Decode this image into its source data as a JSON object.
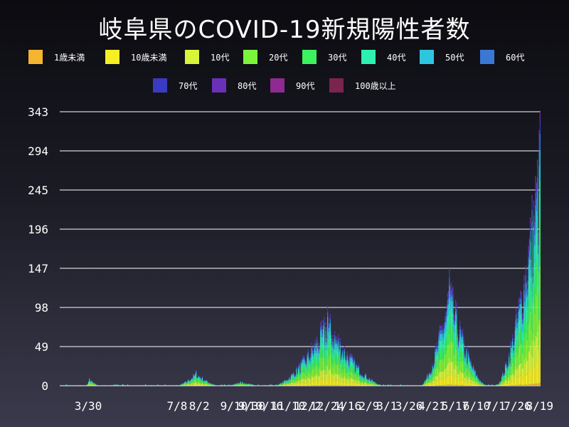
{
  "chart_data": {
    "type": "bar",
    "stacked": true,
    "title": "岐阜県のCOVID-19新規陽性者数",
    "ylim": [
      0,
      343
    ],
    "yticks": [
      0,
      49,
      98,
      147,
      196,
      245,
      294,
      343
    ],
    "xticks": [
      {
        "day": 32,
        "label": "3/30"
      },
      {
        "day": 132,
        "label": "7/8"
      },
      {
        "day": 157,
        "label": "8/2"
      },
      {
        "day": 196,
        "label": "9/10"
      },
      {
        "day": 216,
        "label": "9/30"
      },
      {
        "day": 232,
        "label": "10/16"
      },
      {
        "day": 257,
        "label": "11/10"
      },
      {
        "day": 279,
        "label": "12/2"
      },
      {
        "day": 301,
        "label": "12/24"
      },
      {
        "day": 324,
        "label": "1/16"
      },
      {
        "day": 348,
        "label": "2/9"
      },
      {
        "day": 368,
        "label": "3/1"
      },
      {
        "day": 393,
        "label": "3/26"
      },
      {
        "day": 419,
        "label": "4/21"
      },
      {
        "day": 445,
        "label": "5/17"
      },
      {
        "day": 469,
        "label": "6/10"
      },
      {
        "day": 490,
        "label": "7/1"
      },
      {
        "day": 515,
        "label": "7/26"
      },
      {
        "day": 540,
        "label": "8/19"
      }
    ],
    "series": [
      {
        "name": "1歳未満",
        "color": "#f5b52e"
      },
      {
        "name": "10歳未満",
        "color": "#f7ef23"
      },
      {
        "name": "10代",
        "color": "#d8f53a"
      },
      {
        "name": "20代",
        "color": "#7df43c"
      },
      {
        "name": "30代",
        "color": "#3cf25f"
      },
      {
        "name": "40代",
        "color": "#2ef0b0"
      },
      {
        "name": "50代",
        "color": "#2ec6df"
      },
      {
        "name": "60代",
        "color": "#3a78d4"
      },
      {
        "name": "70代",
        "color": "#3a3ac4"
      },
      {
        "name": "80代",
        "color": "#6a30b8"
      },
      {
        "name": "90代",
        "color": "#8e2a92"
      },
      {
        "name": "100歳以上",
        "color": "#7a2450"
      }
    ],
    "total_days": 541,
    "waves": [
      {
        "start": 28,
        "end": 46,
        "peak_day": 33,
        "peak": 10
      },
      {
        "start": 130,
        "end": 180,
        "peak_day": 153,
        "peak": 20
      },
      {
        "start": 185,
        "end": 230,
        "peak_day": 203,
        "peak": 6
      },
      {
        "start": 240,
        "end": 365,
        "peak_day": 301,
        "peak": 100
      },
      {
        "start": 405,
        "end": 480,
        "peak_day": 438,
        "peak": 147
      },
      {
        "start": 490,
        "end": 541,
        "peak_day": 540,
        "peak": 343
      }
    ]
  }
}
